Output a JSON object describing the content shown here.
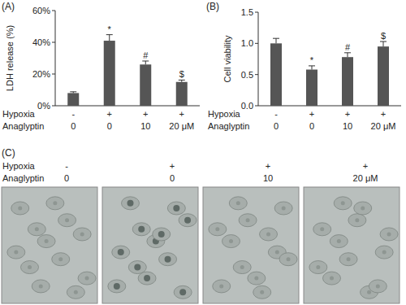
{
  "chart_data": [
    {
      "type": "bar",
      "title": "(A)",
      "y_label": "LDH release (%)",
      "categories": [
        "0",
        "0",
        "10",
        "20 μM"
      ],
      "category_title": "Anaglyptin",
      "conditions": {
        "label": "Hypoxia",
        "values": [
          "-",
          "+",
          "+",
          "+"
        ]
      },
      "values": [
        8,
        41,
        26,
        15
      ],
      "errors": [
        0.8,
        3.8,
        2.2,
        1.2
      ],
      "significance": [
        null,
        "*",
        "#",
        "$"
      ],
      "color": "#555555",
      "ylim": [
        0,
        60
      ],
      "yticks": [
        {
          "value": 0,
          "label": "0%"
        },
        {
          "value": 20,
          "label": "20%"
        },
        {
          "value": 40,
          "label": "40%"
        },
        {
          "value": 60,
          "label": "60%"
        }
      ],
      "grid": false
    },
    {
      "type": "bar",
      "title": "(B)",
      "y_label": "Cell viability",
      "categories": [
        "0",
        "0",
        "10",
        "20 μM"
      ],
      "category_title": "Anaglyptin",
      "conditions": {
        "label": "Hypoxia",
        "values": [
          "-",
          "+",
          "+",
          "+"
        ]
      },
      "values": [
        1.0,
        0.58,
        0.78,
        0.95
      ],
      "errors": [
        0.08,
        0.06,
        0.07,
        0.08
      ],
      "significance": [
        null,
        "*",
        "#",
        "$"
      ],
      "color": "#555555",
      "ylim": [
        0,
        1.5
      ],
      "yticks": [
        {
          "value": 0,
          "label": "0.0"
        },
        {
          "value": 0.5,
          "label": "0.5"
        },
        {
          "value": 1.0,
          "label": "1.0"
        },
        {
          "value": 1.5,
          "label": "1.5"
        }
      ],
      "grid": false
    }
  ],
  "image_panel": {
    "label": "(C)",
    "conditions": {
      "label": "Hypoxia",
      "values": [
        "-",
        "+",
        "+",
        "+"
      ]
    },
    "category_title": "Anaglyptin",
    "categories": [
      "0",
      "0",
      "10",
      "20 μM"
    ]
  }
}
